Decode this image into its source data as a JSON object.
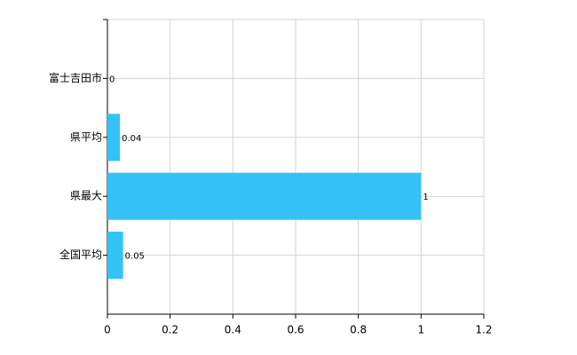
{
  "chart_data": {
    "type": "barh",
    "categories": [
      "富士吉田市",
      "県平均",
      "県最大",
      "全国平均"
    ],
    "values": [
      0,
      0.04,
      1,
      0.05
    ],
    "color": "#33c3f7",
    "xlim": [
      0,
      1.2
    ],
    "xticks": [
      0,
      0.2,
      0.4,
      0.6,
      0.8,
      1,
      1.2
    ],
    "grid": true
  }
}
